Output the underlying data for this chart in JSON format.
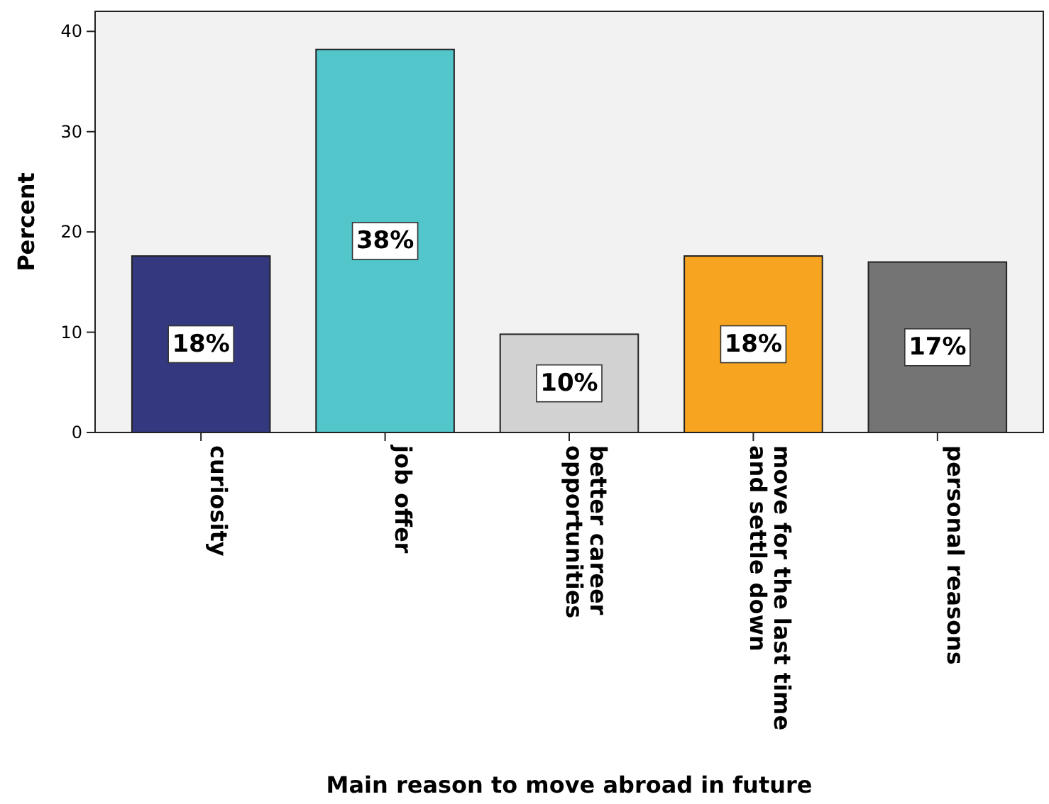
{
  "chart_data": {
    "type": "bar",
    "xlabel": "Main reason to move abroad in future",
    "ylabel": "Percent",
    "categories": [
      "curiosity",
      "job offer",
      "better career\nopportunities",
      "move for the last time\nand settle down",
      "personal reasons"
    ],
    "values": [
      17.6,
      38.2,
      9.8,
      17.6,
      17.0
    ],
    "colors": [
      "#33387f",
      "#53c6cc",
      "#d2d2d2",
      "#f7a520",
      "#747474"
    ],
    "value_labels": [
      "18%",
      "38%",
      "10%",
      "18%",
      "17%"
    ],
    "ylim": [
      0,
      42
    ],
    "yticks": [
      0,
      10,
      20,
      30,
      40
    ],
    "grid": false
  }
}
